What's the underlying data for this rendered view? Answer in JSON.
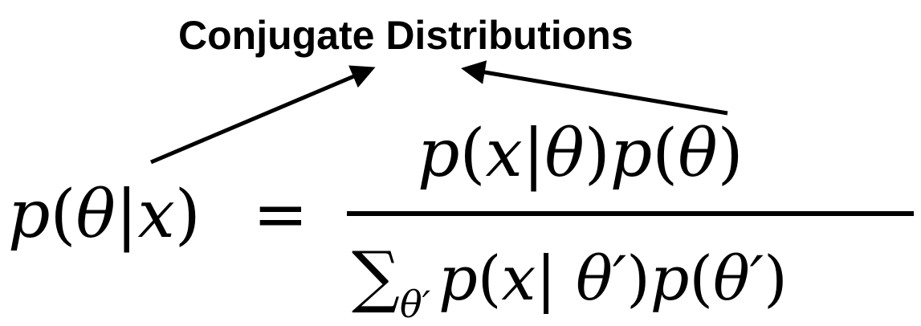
{
  "title": "Conjugate Distributions",
  "equation": {
    "lhs": {
      "p": "p",
      "open": "(",
      "theta": "θ",
      "bar": "|",
      "x": "x",
      "close": ")"
    },
    "equals": "=",
    "numerator": {
      "p1": "p",
      "open1": "(",
      "x": "x",
      "bar": "|",
      "theta1": "θ",
      "close1": ")",
      "p2": "p",
      "open2": "(",
      "theta2": "θ",
      "close2": ")"
    },
    "denominator": {
      "sigma": "∑",
      "sub": "θ′",
      "p1": "p",
      "open1": "(",
      "x": "x",
      "bar": "| ",
      "theta1": "θ′",
      "close1": ")",
      "p2": "p",
      "open2": "(",
      "theta2": "θ′",
      "close2": ")"
    }
  }
}
